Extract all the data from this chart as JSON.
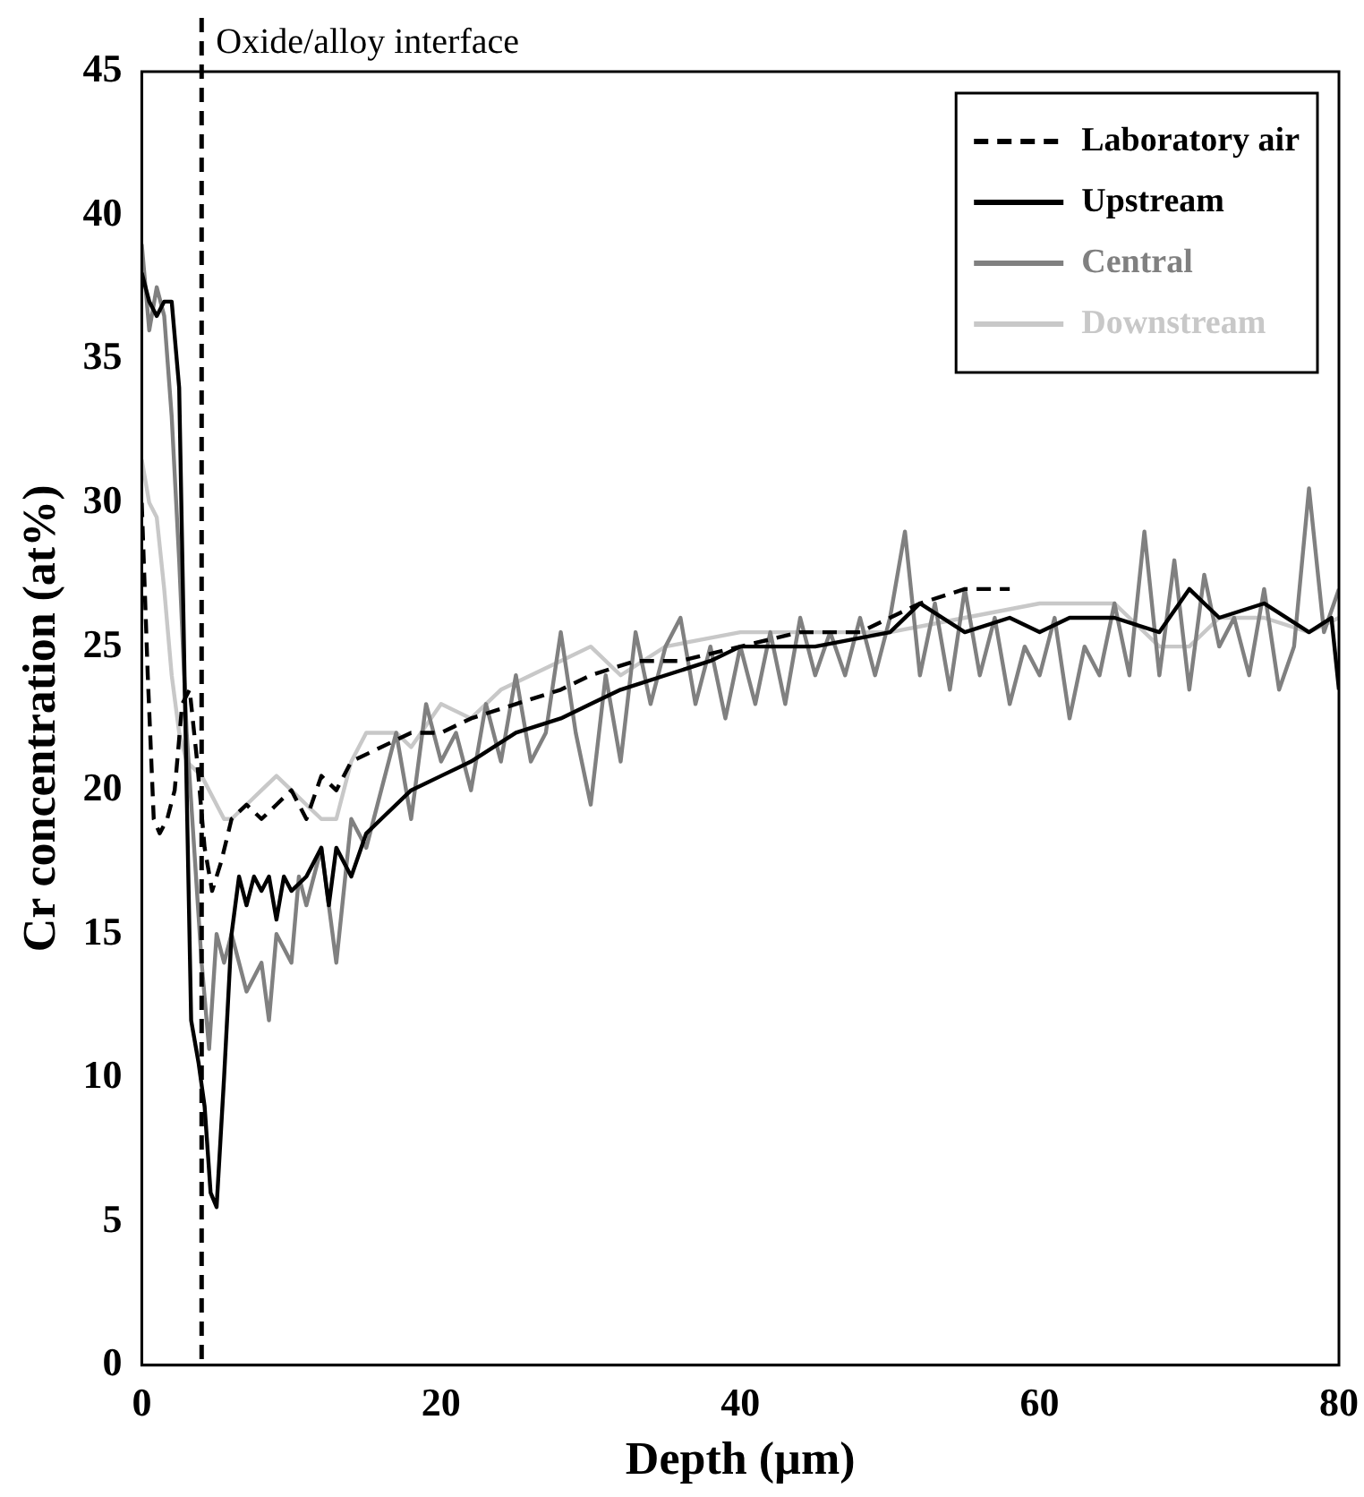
{
  "chart_data": {
    "type": "line",
    "xlabel": "Depth (µm)",
    "ylabel": "Cr concentration (at%)",
    "xlim": [
      0,
      80
    ],
    "xticks": [
      0,
      20,
      40,
      60,
      80
    ],
    "ylim": [
      0,
      45
    ],
    "yticks": [
      0,
      5,
      10,
      15,
      20,
      25,
      30,
      35,
      40,
      45
    ],
    "grid": false,
    "legend": "top right",
    "marker": "none",
    "ref_lines": [
      {
        "axis": "x",
        "value": 4,
        "label": "Oxide/alloy interface",
        "color": "#000000",
        "line_style": "dashed"
      }
    ],
    "series": [
      {
        "name": "Laboratory air",
        "color": "#000000",
        "line_style": "dashed",
        "x": [
          0,
          0.4,
          0.8,
          1.2,
          1.7,
          2.2,
          2.7,
          3.2,
          3.7,
          4.2,
          4.7,
          5.3,
          6,
          7,
          8,
          9,
          10,
          11,
          12,
          13,
          14,
          16,
          18,
          20,
          22,
          25,
          28,
          30,
          33,
          36,
          40,
          44,
          48,
          52,
          55,
          58
        ],
        "values": [
          30,
          24,
          19,
          18.5,
          19,
          20,
          23,
          23.5,
          21,
          18,
          16.5,
          17.5,
          19,
          19.5,
          19,
          19.5,
          20,
          19,
          20.5,
          20,
          21,
          21.5,
          22,
          22,
          22.5,
          23,
          23.5,
          24,
          24.5,
          24.5,
          25,
          25.5,
          25.5,
          26.5,
          27,
          27
        ]
      },
      {
        "name": "Upstream",
        "color": "#000000",
        "line_style": "solid",
        "x": [
          0,
          0.5,
          1,
          1.5,
          2,
          2.5,
          3,
          3.3,
          3.8,
          4.2,
          4.6,
          5,
          5.5,
          6,
          6.5,
          7,
          7.5,
          8,
          8.5,
          9,
          9.5,
          10,
          11,
          12,
          12.5,
          13,
          14,
          15,
          16,
          18,
          20,
          22,
          25,
          28,
          30,
          32,
          35,
          38,
          40,
          45,
          50,
          52,
          55,
          58,
          60,
          62,
          65,
          68,
          70,
          72,
          75,
          78,
          79.5,
          80
        ],
        "values": [
          38,
          37,
          36.5,
          37,
          37,
          34,
          20,
          12,
          10.5,
          9,
          6,
          5.5,
          10,
          15,
          17,
          16,
          17,
          16.5,
          17,
          15.5,
          17,
          16.5,
          17,
          18,
          16,
          18,
          17,
          18.5,
          19,
          20,
          20.5,
          21,
          22,
          22.5,
          23,
          23.5,
          24,
          24.5,
          25,
          25,
          25.5,
          26.5,
          25.5,
          26,
          25.5,
          26,
          26,
          25.5,
          27,
          26,
          26.5,
          25.5,
          26,
          23.5
        ]
      },
      {
        "name": "Central",
        "color": "#808080",
        "line_style": "solid",
        "x": [
          0,
          0.5,
          1,
          1.5,
          2,
          2.5,
          3,
          3.5,
          4,
          4.5,
          5,
          5.5,
          6,
          7,
          8,
          8.5,
          9,
          10,
          10.5,
          11,
          12,
          13,
          14,
          15,
          16,
          17,
          18,
          19,
          20,
          21,
          22,
          23,
          24,
          25,
          26,
          27,
          28,
          29,
          30,
          31,
          32,
          33,
          34,
          35,
          36,
          37,
          38,
          39,
          40,
          41,
          42,
          43,
          44,
          45,
          46,
          47,
          48,
          49,
          50,
          51,
          52,
          53,
          54,
          55,
          56,
          57,
          58,
          59,
          60,
          61,
          62,
          63,
          64,
          65,
          66,
          67,
          68,
          69,
          70,
          71,
          72,
          73,
          74,
          75,
          76,
          77,
          78,
          79,
          80
        ],
        "values": [
          39,
          36,
          37.5,
          36.5,
          33,
          28,
          22,
          18,
          14,
          11,
          15,
          14,
          15,
          13,
          14,
          12,
          15,
          14,
          17,
          16,
          18,
          14,
          19,
          18,
          20,
          22,
          19,
          23,
          21,
          22,
          20,
          23,
          21,
          24,
          21,
          22,
          25.5,
          22,
          19.5,
          24,
          21,
          25.5,
          23,
          25,
          26,
          23,
          25,
          22.5,
          25,
          23,
          25.5,
          23,
          26,
          24,
          25.5,
          24,
          26,
          24,
          26,
          29,
          24,
          26.5,
          23.5,
          27,
          24,
          26,
          23,
          25,
          24,
          26,
          22.5,
          25,
          24,
          26.5,
          24,
          29,
          24,
          28,
          23.5,
          27.5,
          25,
          26,
          24,
          27,
          23.5,
          25,
          30.5,
          25.5,
          27
        ]
      },
      {
        "name": "Downstream",
        "color": "#c8c8c8",
        "line_style": "solid",
        "x": [
          0,
          0.5,
          1,
          1.5,
          2,
          2.5,
          3,
          4,
          5,
          5.5,
          6,
          7,
          8,
          9,
          10,
          11,
          12,
          13,
          14,
          15,
          17,
          18,
          20,
          22,
          24,
          26,
          28,
          30,
          32,
          35,
          40,
          45,
          50,
          55,
          60,
          65,
          68,
          70,
          72,
          75,
          78,
          80
        ],
        "values": [
          31.5,
          30,
          29.5,
          27,
          24,
          22,
          21,
          20.5,
          19.5,
          19,
          19,
          19.5,
          20,
          20.5,
          20,
          19.5,
          19,
          19,
          21,
          22,
          22,
          21.5,
          23,
          22.5,
          23.5,
          24,
          24.5,
          25,
          24,
          25,
          25.5,
          25.5,
          25.5,
          26,
          26.5,
          26.5,
          25,
          25,
          26,
          26,
          25.5,
          26
        ]
      }
    ]
  }
}
